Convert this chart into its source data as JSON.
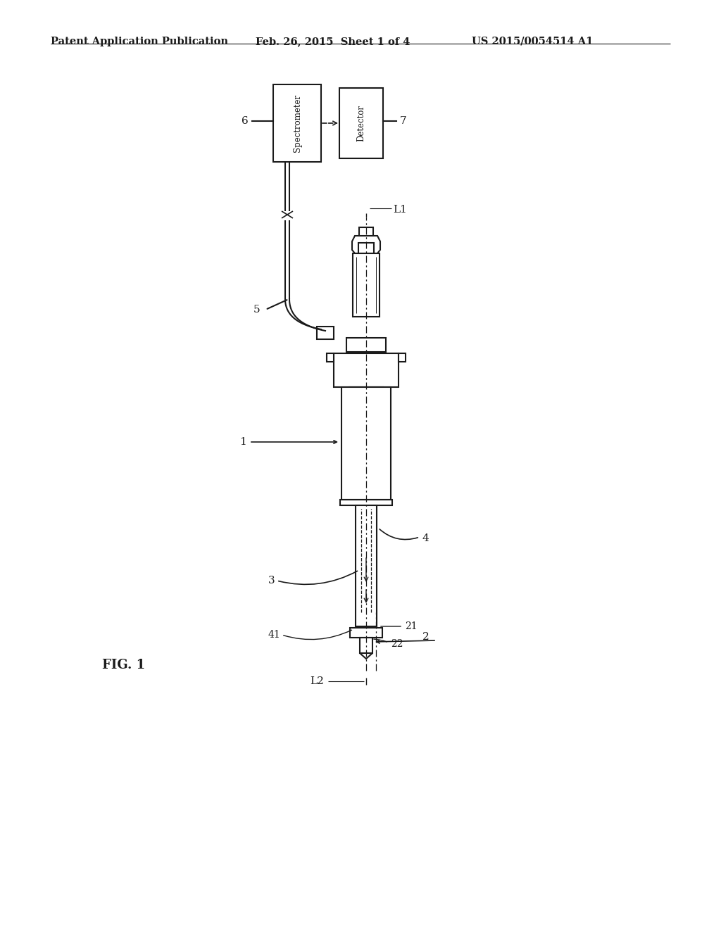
{
  "bg_color": "#ffffff",
  "line_color": "#1a1a1a",
  "header_text_left": "Patent Application Publication",
  "header_text_mid": "Feb. 26, 2015  Sheet 1 of 4",
  "header_text_right": "US 2015/0054514 A1",
  "fig_label": "FIG. 1",
  "spectrometer_label": "Spectrometer",
  "detector_label": "Detector",
  "label_6": "6",
  "label_7": "7",
  "label_5": "5",
  "label_1": "1",
  "label_2": "2",
  "label_3": "3",
  "label_4": "4",
  "label_L1": "L1",
  "label_L2": "L2",
  "label_21": "21",
  "label_22": "22",
  "label_41": "41"
}
